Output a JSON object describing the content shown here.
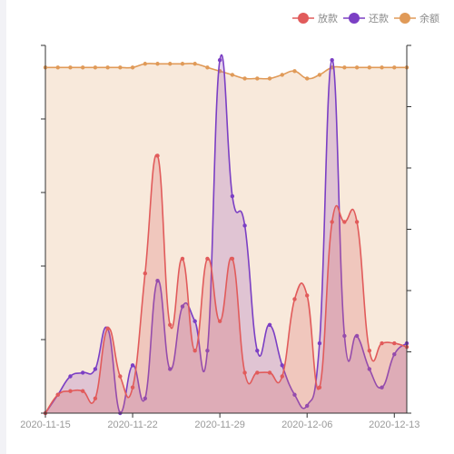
{
  "chart_data": {
    "type": "area",
    "title": "",
    "xlabel": "",
    "ylabel": "",
    "legend_position": "top-right",
    "grid": false,
    "y_tick_labels": false,
    "x": [
      "2020-11-15",
      "2020-11-16",
      "2020-11-17",
      "2020-11-18",
      "2020-11-19",
      "2020-11-20",
      "2020-11-21",
      "2020-11-22",
      "2020-11-23",
      "2020-11-24",
      "2020-11-25",
      "2020-11-26",
      "2020-11-27",
      "2020-11-28",
      "2020-11-29",
      "2020-11-30",
      "2020-12-01",
      "2020-12-02",
      "2020-12-03",
      "2020-12-04",
      "2020-12-05",
      "2020-12-06",
      "2020-12-07",
      "2020-12-08",
      "2020-12-09",
      "2020-12-10",
      "2020-12-11",
      "2020-12-12",
      "2020-12-13",
      "2020-12-14"
    ],
    "x_tick_labels": [
      "2020-11-15",
      "2020-11-22",
      "2020-11-29",
      "2020-12-06",
      "2020-12-13"
    ],
    "ylim": [
      0,
      100
    ],
    "series": [
      {
        "name": "余额",
        "color": "#e09a58",
        "fill": "rgba(239,207,176,0.45)",
        "values": [
          94,
          94,
          94,
          94,
          94,
          94,
          94,
          94,
          95,
          95,
          95,
          95,
          95,
          94,
          93,
          92,
          91,
          91,
          91,
          92,
          93,
          91,
          92,
          94,
          94,
          94,
          94,
          94,
          94,
          94
        ]
      },
      {
        "name": "还款",
        "color": "#7b3fc4",
        "fill": "rgba(160,100,190,0.28)",
        "values": [
          0,
          5,
          10,
          11,
          12,
          23,
          0,
          13,
          4,
          36,
          12,
          29,
          25,
          17,
          96,
          59,
          51,
          17,
          24,
          13,
          5,
          2,
          19,
          96,
          21,
          21,
          12,
          7,
          16,
          19
        ]
      },
      {
        "name": "放款",
        "color": "#e15b5b",
        "fill": "rgba(220,110,110,0.28)",
        "values": [
          0,
          5,
          6,
          6,
          4,
          23,
          10,
          7,
          38,
          70,
          24,
          42,
          17,
          42,
          25,
          42,
          11,
          11,
          11,
          10,
          31,
          32,
          7,
          52,
          52,
          52,
          17,
          19,
          19,
          18
        ]
      }
    ]
  }
}
